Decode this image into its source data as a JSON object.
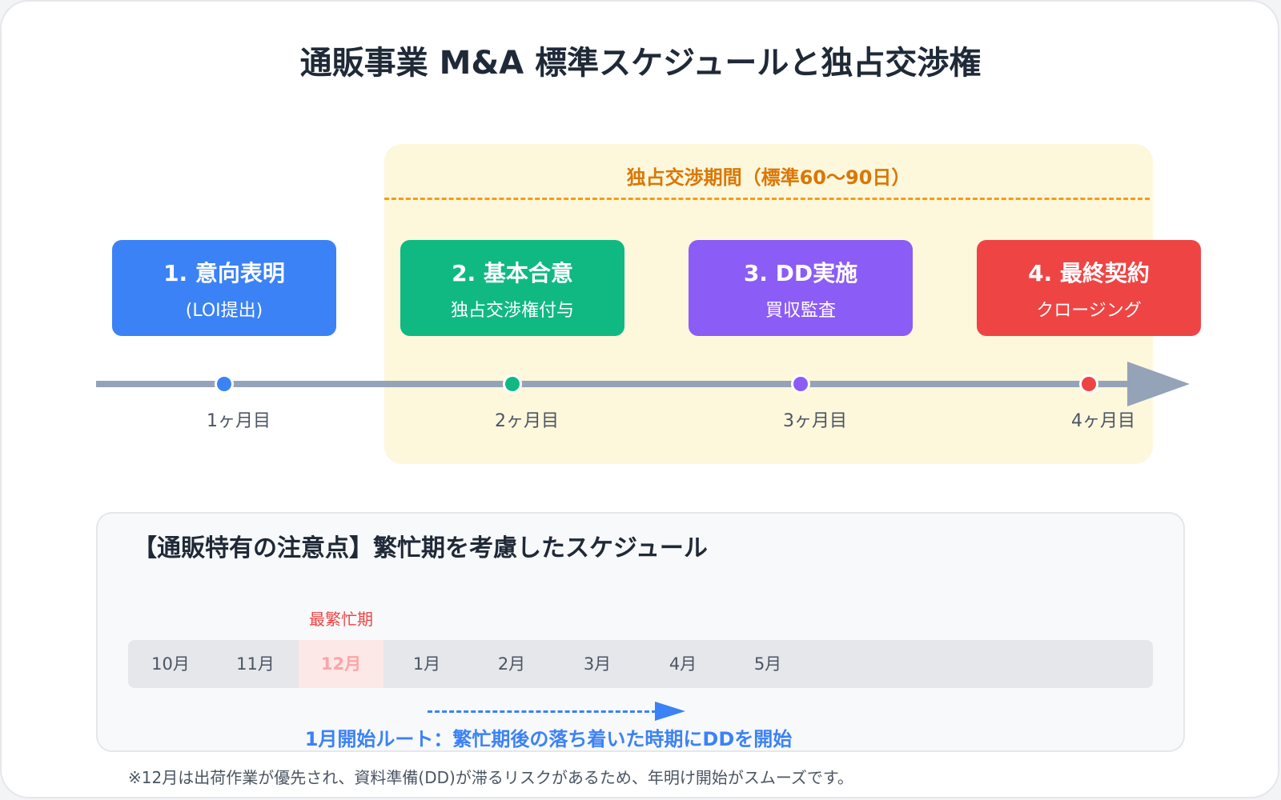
{
  "title": "通販事業 M&A 標準スケジュールと独占交渉権",
  "exclusive_period": {
    "label": "独占交渉期間（標準60〜90日）",
    "color": "#d97706"
  },
  "steps": [
    {
      "title": "1. 意向表明",
      "subtitle": "(LOI提出)",
      "color": "#3b82f6",
      "month_label": "1ヶ月目"
    },
    {
      "title": "2. 基本合意",
      "subtitle": "独占交渉権付与",
      "color": "#10b981",
      "month_label": "2ヶ月目"
    },
    {
      "title": "3. DD実施",
      "subtitle": "買収監査",
      "color": "#8b5cf6",
      "month_label": "3ヶ月目"
    },
    {
      "title": "4. 最終契約",
      "subtitle": "クロージング",
      "color": "#ef4444",
      "month_label": "4ヶ月目"
    }
  ],
  "note": {
    "title": "【通販特有の注意点】繁忙期を考慮したスケジュール",
    "busy_label": "最繁忙期",
    "months": [
      "10月",
      "11月",
      "12月",
      "1月",
      "2月",
      "3月",
      "4月",
      "5月"
    ],
    "route_label": "1月開始ルート：繁忙期後の落ち着いた時期にDDを開始",
    "footnote": "※12月は出荷作業が優先され、資料準備(DD)が滞るリスクがあるため、年明け開始がスムーズです。"
  }
}
